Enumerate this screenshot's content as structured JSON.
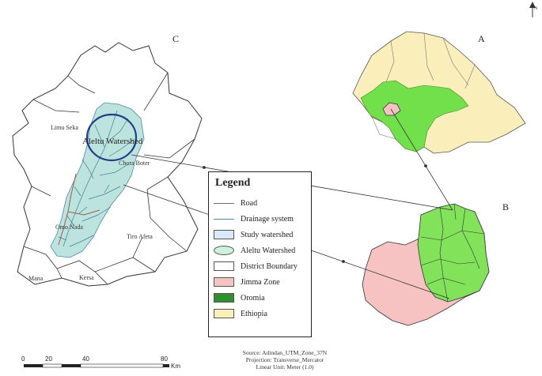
{
  "panels": {
    "a": "A",
    "b": "B",
    "c": "C"
  },
  "places": {
    "limmu_seka": "Limu Seka",
    "aleltu_watershed": "Aleltu Watershed",
    "chora_boter": "Chora Boter",
    "tiro_afeta": "Tiro Afeta",
    "mana": "Mana",
    "kersa": "Kersa",
    "omo_nada": "Omo Nada"
  },
  "legend": {
    "title": "Legend",
    "items": [
      {
        "label": "Road",
        "symbol": "line",
        "color": "#7a6a6a"
      },
      {
        "label": "Drainage system",
        "symbol": "line",
        "color": "#4a8aa8"
      },
      {
        "label": "Study watershed",
        "symbol": "rect",
        "color": "#dbe8f8"
      },
      {
        "label": "Aleltu Watershed",
        "symbol": "ellipse",
        "color": "#cdf2dc"
      },
      {
        "label": "District Boundary",
        "symbol": "rect",
        "color": "#ffffff"
      },
      {
        "label": "Jimma Zone",
        "symbol": "rect",
        "color": "#f6c2c2"
      },
      {
        "label": "Oromia",
        "symbol": "rect",
        "color": "#2f8f2f"
      },
      {
        "label": "Ethiopia",
        "symbol": "rect",
        "color": "#faeebb"
      }
    ]
  },
  "north_arrow": "N",
  "scale_bar": {
    "ticks": [
      "0",
      "20",
      "40",
      "80"
    ],
    "unit": "Km"
  },
  "source": {
    "line1": "Source: Adindan_UTM_Zone_37N",
    "line2": "Projection: Transverse_Mercator",
    "line3": "Linear Unit: Meter (1.0)"
  }
}
